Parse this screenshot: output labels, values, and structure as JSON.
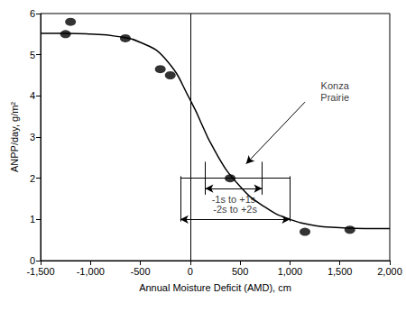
{
  "chart_data": {
    "type": "scatter",
    "x_label": "Annual Moisture Deficit (AMD), cm",
    "y_label": "ANPP/day, g/m²",
    "xlim": [
      -1500,
      2000
    ],
    "xticks": [
      {
        "value": -1500,
        "label": "-1,500"
      },
      {
        "value": -1000,
        "label": "-1,000"
      },
      -500,
      0,
      500,
      {
        "value": 1000,
        "label": "1,000"
      },
      {
        "value": 1500,
        "label": "1,500"
      },
      {
        "value": 2000,
        "label": "2,000"
      }
    ],
    "ylim": [
      0,
      6
    ],
    "yticks": [
      0,
      1,
      2,
      3,
      4,
      5,
      6
    ],
    "grid": false,
    "series": [
      {
        "type": "scatter",
        "color": "#000000",
        "marker": "ellipse",
        "x": [
          -1250,
          -1200,
          -650,
          -300,
          -200,
          400,
          1150,
          1600
        ],
        "y": [
          5.5,
          5.8,
          5.4,
          4.65,
          4.5,
          2.0,
          0.7,
          0.75
        ]
      },
      {
        "type": "line",
        "color": "#000000",
        "line_style": "solid",
        "x": [
          -1500,
          -1250,
          -1000,
          -750,
          -500,
          -250,
          0,
          250,
          500,
          750,
          1000,
          1250,
          1500,
          1750,
          2000
        ],
        "y": [
          5.52,
          5.52,
          5.5,
          5.45,
          5.3,
          4.9,
          3.9,
          2.65,
          1.8,
          1.3,
          1.0,
          0.85,
          0.8,
          0.78,
          0.78
        ]
      }
    ],
    "reference_line": {
      "x": 0
    },
    "intervals": [
      {
        "label": "-1s to +1s",
        "from": 150,
        "to": 720,
        "y": 1.75,
        "label_y": 1.5,
        "cap": [
          1.6,
          2.4
        ]
      },
      {
        "label": "-2s to +2s",
        "from": -100,
        "to": 1000,
        "y": 1.0,
        "label_y": 1.25,
        "cap": [
          0.95,
          2.05
        ],
        "bar_y": 2.0
      }
    ],
    "annotations": [
      {
        "text": "Konza Prairie",
        "x": 1450,
        "y": 4.1,
        "arrow_from": [
          1150,
          3.85
        ],
        "arrow_to": [
          560,
          2.35
        ]
      }
    ]
  }
}
